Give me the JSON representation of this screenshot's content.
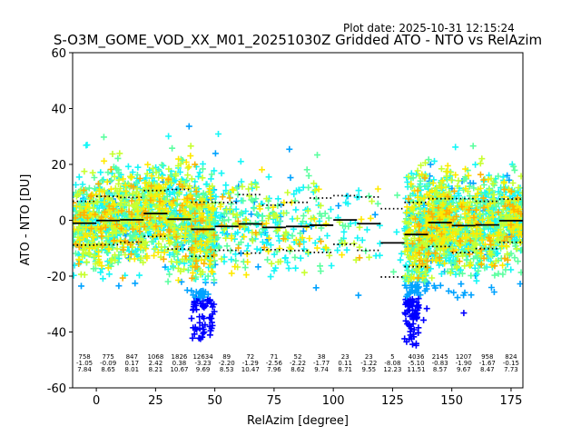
{
  "chart_data": {
    "type": "scatter",
    "title": "S-O3M_GOME_VOD_XX_M01_20251030Z Gridded ATO - NTO vs RelAzim",
    "plot_date": "Plot date: 2025-10-31 12:15:24",
    "xlabel": "RelAzim [degree]",
    "ylabel": "ATO - NTO [DU]",
    "xlim": [
      -10,
      180
    ],
    "ylim": [
      -60,
      60
    ],
    "xticks": [
      0,
      25,
      50,
      75,
      100,
      125,
      150,
      175
    ],
    "yticks": [
      -60,
      -40,
      -20,
      0,
      20,
      40,
      60
    ],
    "grid": false,
    "marker": "+",
    "colormap": [
      "#0000ff",
      "#00a2ff",
      "#16f7f7",
      "#5cffa0",
      "#c7ff2f",
      "#ffea00",
      "#ffb000"
    ],
    "bins": [
      {
        "center": -5,
        "count": "758",
        "mean": "-1.05",
        "std": "7.84"
      },
      {
        "center": 5,
        "count": "775",
        "mean": "-0.09",
        "std": "8.65"
      },
      {
        "center": 15,
        "count": "847",
        "mean": "0.17",
        "std": "8.01"
      },
      {
        "center": 25,
        "count": "1068",
        "mean": "2.42",
        "std": "8.21"
      },
      {
        "center": 35,
        "count": "1826",
        "mean": "0.38",
        "std": "10.67"
      },
      {
        "center": 45,
        "count": "12634",
        "mean": "-3.23",
        "std": "9.69"
      },
      {
        "center": 55,
        "count": "89",
        "mean": "-2.20",
        "std": "8.53"
      },
      {
        "center": 65,
        "count": "72",
        "mean": "-1.29",
        "std": "10.47"
      },
      {
        "center": 75,
        "count": "71",
        "mean": "-2.56",
        "std": "7.96"
      },
      {
        "center": 85,
        "count": "52",
        "mean": "-2.22",
        "std": "8.62"
      },
      {
        "center": 95,
        "count": "38",
        "mean": "-1.77",
        "std": "9.74"
      },
      {
        "center": 105,
        "count": "23",
        "mean": "0.11",
        "std": "8.71"
      },
      {
        "center": 115,
        "count": "23",
        "mean": "-1.22",
        "std": "9.55"
      },
      {
        "center": 125,
        "count": "5",
        "mean": "-8.08",
        "std": "12.23"
      },
      {
        "center": 135,
        "count": "4036",
        "mean": "-5.10",
        "std": "11.51"
      },
      {
        "center": 145,
        "count": "2145",
        "mean": "-0.83",
        "std": "8.57"
      },
      {
        "center": 155,
        "count": "1207",
        "mean": "-1.90",
        "std": "9.67"
      },
      {
        "center": 165,
        "count": "958",
        "mean": "-1.67",
        "std": "8.47"
      },
      {
        "center": 175,
        "count": "824",
        "mean": "-0.15",
        "std": "7.73"
      }
    ]
  }
}
